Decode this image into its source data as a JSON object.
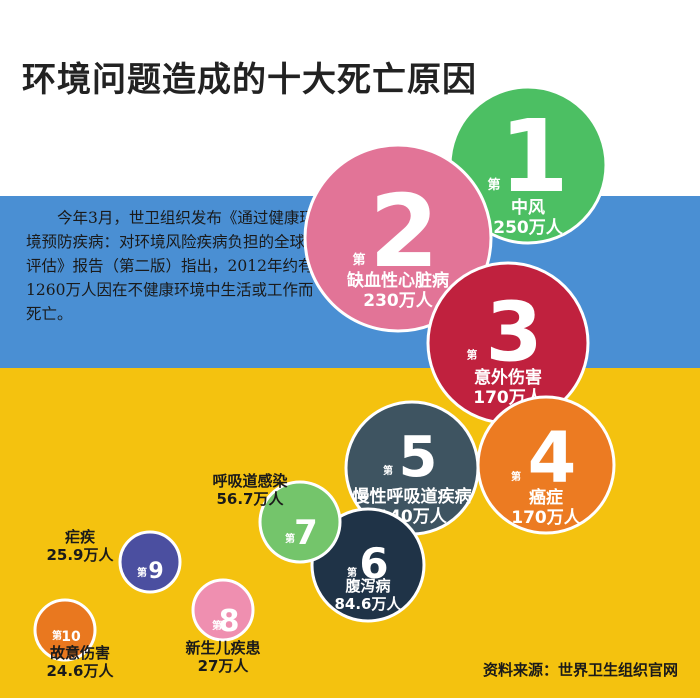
{
  "title": "环境问题造成的十大死亡原因",
  "intro": "今年3月，世卫组织发布《通过健康环境预防疾病：对环境风险疾病负担的全球评估》报告（第二版）指出，2012年约有1260万人因在不健康环境中生活或工作而死亡。",
  "source": "资料来源：世界卫生组织官网",
  "rank_prefix": "第",
  "colors": {
    "green": "#4cbf63",
    "pink": "#e27497",
    "crimson": "#c0213e",
    "orange": "#ec7b22",
    "slate": "#3e5461",
    "navy": "#1f3347",
    "lightgreen": "#74c56b",
    "lightpink": "#ef8fb0",
    "purple": "#4b4fa0",
    "orange2": "#e9781f",
    "blue_band": "#4a8fd3",
    "yellow_band": "#f4c20f"
  },
  "chart_data": {
    "type": "bubble",
    "unit": "万人",
    "items": [
      {
        "rank": "1",
        "name": "中风",
        "value": 250,
        "value_label": "250万人",
        "color": "#4cbf63"
      },
      {
        "rank": "2",
        "name": "缺血性心脏病",
        "value": 230,
        "value_label": "230万人",
        "color": "#e27497"
      },
      {
        "rank": "3",
        "name": "意外伤害",
        "value": 170,
        "value_label": "170万人",
        "color": "#c0213e"
      },
      {
        "rank": "4",
        "name": "癌症",
        "value": 170,
        "value_label": "170万人",
        "color": "#ec7b22"
      },
      {
        "rank": "5",
        "name": "慢性呼吸道疾病",
        "value": 140,
        "value_label": "140万人",
        "color": "#3e5461"
      },
      {
        "rank": "6",
        "name": "腹泻病",
        "value": 84.6,
        "value_label": "84.6万人",
        "color": "#1f3347"
      },
      {
        "rank": "7",
        "name": "呼吸道感染",
        "value": 56.7,
        "value_label": "56.7万人",
        "color": "#74c56b"
      },
      {
        "rank": "8",
        "name": "新生儿疾患",
        "value": 27,
        "value_label": "27万人",
        "color": "#ef8fb0"
      },
      {
        "rank": "9",
        "name": "疟疾",
        "value": 25.9,
        "value_label": "25.9万人",
        "color": "#4b4fa0"
      },
      {
        "rank": "10",
        "name": "故意伤害",
        "value": 24.6,
        "value_label": "24.6万人",
        "color": "#e9781f"
      }
    ]
  }
}
